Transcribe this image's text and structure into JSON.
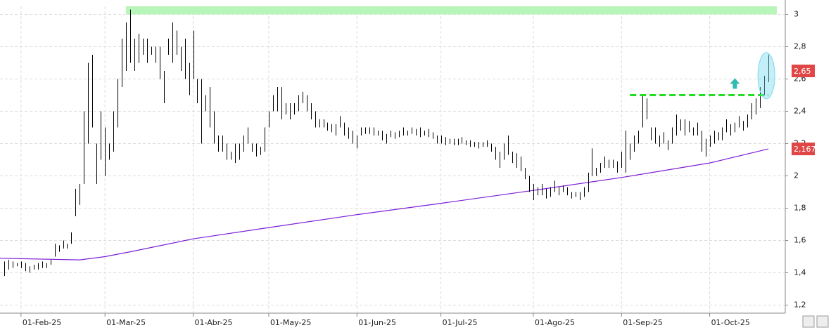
{
  "chart_data": {
    "type": "ohlc",
    "xlim": [
      -1,
      186
    ],
    "ylim": [
      1.15,
      3.05
    ],
    "yticks": [
      {
        "value": 1.2,
        "label": "1,2"
      },
      {
        "value": 1.4,
        "label": "1,4"
      },
      {
        "value": 1.6,
        "label": "1,6"
      },
      {
        "value": 1.8,
        "label": "1,8"
      },
      2,
      {
        "value": 2.2,
        "label": "2,2"
      },
      {
        "value": 2.4,
        "label": "2,4"
      },
      {
        "value": 2.6,
        "label": "2,6"
      },
      {
        "value": 2.8,
        "label": "2,8"
      },
      3
    ],
    "xticks": [
      {
        "value": 4,
        "label": "01-Feb-25"
      },
      {
        "value": 24,
        "label": "01-Mar-25"
      },
      {
        "value": 45,
        "label": "01-Abr-25"
      },
      {
        "value": 63,
        "label": "01-May-25"
      },
      {
        "value": 84,
        "label": "01-Jun-25"
      },
      {
        "value": 104,
        "label": "01-Jul-25"
      },
      {
        "value": 126,
        "label": "01-Ago-25"
      },
      {
        "value": 147,
        "label": "01-Sep-25"
      },
      {
        "value": 168,
        "label": "01-Oct-25"
      }
    ],
    "grid": true,
    "bar_color": "#000000",
    "high": [
      1.47,
      1.48,
      1.47,
      1.46,
      1.47,
      1.46,
      1.44,
      1.45,
      1.46,
      1.47,
      1.46,
      1.48,
      1.58,
      1.57,
      1.6,
      1.58,
      1.65,
      1.92,
      1.95,
      2.4,
      2.7,
      2.75,
      2.2,
      2.4,
      2.3,
      2.2,
      2.4,
      2.6,
      2.85,
      2.95,
      3.03,
      2.85,
      2.88,
      2.85,
      2.85,
      2.8,
      2.8,
      2.8,
      2.65,
      2.85,
      2.95,
      2.9,
      2.8,
      2.85,
      2.7,
      2.9,
      2.6,
      2.6,
      2.5,
      2.55,
      2.4,
      2.25,
      2.25,
      2.2,
      2.15,
      2.2,
      2.2,
      2.25,
      2.3,
      2.2,
      2.2,
      2.18,
      2.3,
      2.4,
      2.5,
      2.55,
      2.55,
      2.45,
      2.45,
      2.45,
      2.5,
      2.52,
      2.5,
      2.45,
      2.4,
      2.35,
      2.35,
      2.33,
      2.32,
      2.32,
      2.37,
      2.33,
      2.3,
      2.28,
      2.25,
      2.3,
      2.3,
      2.3,
      2.3,
      2.28,
      2.28,
      2.26,
      2.28,
      2.27,
      2.28,
      2.3,
      2.28,
      2.3,
      2.29,
      2.3,
      2.28,
      2.29,
      2.27,
      2.25,
      2.25,
      2.24,
      2.23,
      2.23,
      2.23,
      2.24,
      2.22,
      2.22,
      2.21,
      2.21,
      2.21,
      2.22,
      2.2,
      2.18,
      2.15,
      2.2,
      2.25,
      2.15,
      2.14,
      2.12,
      2.05,
      2.0,
      1.95,
      1.93,
      1.95,
      1.92,
      1.93,
      1.97,
      1.93,
      1.94,
      1.93,
      1.9,
      1.9,
      1.9,
      1.93,
      2.02,
      2.17,
      2.05,
      2.08,
      2.12,
      2.1,
      2.1,
      2.09,
      2.15,
      2.28,
      2.2,
      2.25,
      2.28,
      2.5,
      2.48,
      2.3,
      2.3,
      2.25,
      2.27,
      2.22,
      2.3,
      2.38,
      2.35,
      2.35,
      2.34,
      2.3,
      2.33,
      2.28,
      2.23,
      2.25,
      2.28,
      2.27,
      2.3,
      2.35,
      2.32,
      2.33,
      2.37,
      2.34,
      2.38,
      2.45,
      2.48,
      2.55,
      2.62,
      2.75
    ],
    "low": [
      1.38,
      1.42,
      1.43,
      1.44,
      1.43,
      1.41,
      1.4,
      1.42,
      1.42,
      1.43,
      1.43,
      1.45,
      1.5,
      1.53,
      1.55,
      1.55,
      1.58,
      1.75,
      1.82,
      1.95,
      2.2,
      2.3,
      1.95,
      2.1,
      2.0,
      2.1,
      2.15,
      2.3,
      2.55,
      2.65,
      2.7,
      2.65,
      2.7,
      2.75,
      2.7,
      2.75,
      2.7,
      2.6,
      2.45,
      2.75,
      2.7,
      2.75,
      2.65,
      2.6,
      2.5,
      2.6,
      2.45,
      2.2,
      2.4,
      2.3,
      2.2,
      2.15,
      2.15,
      2.1,
      2.1,
      2.08,
      2.1,
      2.15,
      2.2,
      2.15,
      2.12,
      2.13,
      2.15,
      2.3,
      2.4,
      2.4,
      2.35,
      2.38,
      2.35,
      2.38,
      2.4,
      2.45,
      2.4,
      2.35,
      2.3,
      2.3,
      2.3,
      2.28,
      2.27,
      2.25,
      2.3,
      2.25,
      2.23,
      2.2,
      2.17,
      2.25,
      2.26,
      2.26,
      2.25,
      2.25,
      2.22,
      2.2,
      2.24,
      2.23,
      2.24,
      2.25,
      2.25,
      2.26,
      2.25,
      2.24,
      2.25,
      2.24,
      2.23,
      2.2,
      2.2,
      2.19,
      2.2,
      2.19,
      2.19,
      2.2,
      2.19,
      2.18,
      2.18,
      2.17,
      2.18,
      2.18,
      2.15,
      2.1,
      2.05,
      2.1,
      2.13,
      2.08,
      2.05,
      2.03,
      1.98,
      1.9,
      1.85,
      1.88,
      1.88,
      1.86,
      1.87,
      1.9,
      1.88,
      1.9,
      1.88,
      1.86,
      1.87,
      1.85,
      1.87,
      1.9,
      2.0,
      2.0,
      2.02,
      2.05,
      2.05,
      2.05,
      2.02,
      2.05,
      2.02,
      2.1,
      2.15,
      2.2,
      2.3,
      2.35,
      2.22,
      2.2,
      2.18,
      2.2,
      2.16,
      2.2,
      2.25,
      2.28,
      2.25,
      2.27,
      2.25,
      2.25,
      2.15,
      2.12,
      2.18,
      2.2,
      2.22,
      2.22,
      2.27,
      2.25,
      2.27,
      2.3,
      2.28,
      2.3,
      2.35,
      2.38,
      2.42,
      2.5,
      2.58
    ],
    "moving_average": {
      "color": "#7b1fd6",
      "x": [
        -1,
        18,
        24,
        30,
        45,
        63,
        84,
        104,
        126,
        147,
        168,
        182
      ],
      "values": [
        1.49,
        1.48,
        1.5,
        1.53,
        1.61,
        1.68,
        1.76,
        1.83,
        1.91,
        1.99,
        2.08,
        2.167
      ],
      "value_label": "2,167"
    },
    "last_price": {
      "value": 2.65,
      "label": "2,65"
    },
    "resistance_zone": {
      "color": "#b8f5b8",
      "x": [
        29,
        184
      ],
      "y": [
        3.0,
        3.05
      ]
    },
    "breakout_line": {
      "color": "#22dd22",
      "x": [
        149,
        182
      ],
      "value": 2.5
    }
  }
}
